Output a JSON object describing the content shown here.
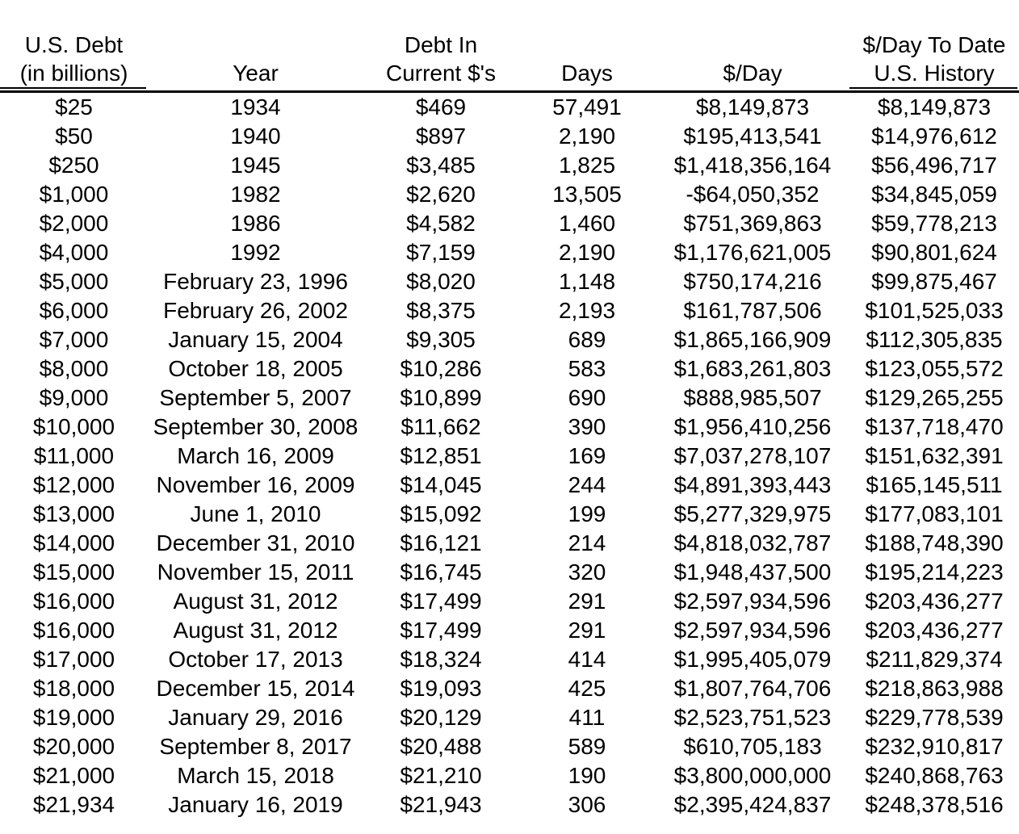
{
  "chart_data": {
    "type": "table",
    "title": "",
    "columns": [
      {
        "id": "debt",
        "lines": [
          "U.S. Debt",
          "(in billions)"
        ],
        "underlined": true
      },
      {
        "id": "year",
        "lines": [
          "Year"
        ],
        "underlined": false
      },
      {
        "id": "current_dollars",
        "lines": [
          "Debt In",
          "Current $'s"
        ],
        "underlined": false
      },
      {
        "id": "days",
        "lines": [
          "Days"
        ],
        "underlined": false
      },
      {
        "id": "per_day",
        "lines": [
          "$/Day"
        ],
        "underlined": false
      },
      {
        "id": "per_day_to_date",
        "lines": [
          "$/Day To Date",
          "U.S. History"
        ],
        "underlined": true
      }
    ],
    "rows": [
      [
        "$25",
        "1934",
        "$469",
        "57,491",
        "$8,149,873",
        "$8,149,873"
      ],
      [
        "$50",
        "1940",
        "$897",
        "2,190",
        "$195,413,541",
        "$14,976,612"
      ],
      [
        "$250",
        "1945",
        "$3,485",
        "1,825",
        "$1,418,356,164",
        "$56,496,717"
      ],
      [
        "$1,000",
        "1982",
        "$2,620",
        "13,505",
        "-$64,050,352",
        "$34,845,059"
      ],
      [
        "$2,000",
        "1986",
        "$4,582",
        "1,460",
        "$751,369,863",
        "$59,778,213"
      ],
      [
        "$4,000",
        "1992",
        "$7,159",
        "2,190",
        "$1,176,621,005",
        "$90,801,624"
      ],
      [
        "$5,000",
        "February 23, 1996",
        "$8,020",
        "1,148",
        "$750,174,216",
        "$99,875,467"
      ],
      [
        "$6,000",
        "February 26, 2002",
        "$8,375",
        "2,193",
        "$161,787,506",
        "$101,525,033"
      ],
      [
        "$7,000",
        "January 15, 2004",
        "$9,305",
        "689",
        "$1,865,166,909",
        "$112,305,835"
      ],
      [
        "$8,000",
        "October 18, 2005",
        "$10,286",
        "583",
        "$1,683,261,803",
        "$123,055,572"
      ],
      [
        "$9,000",
        "September 5, 2007",
        "$10,899",
        "690",
        "$888,985,507",
        "$129,265,255"
      ],
      [
        "$10,000",
        "September 30, 2008",
        "$11,662",
        "390",
        "$1,956,410,256",
        "$137,718,470"
      ],
      [
        "$11,000",
        "March 16, 2009",
        "$12,851",
        "169",
        "$7,037,278,107",
        "$151,632,391"
      ],
      [
        "$12,000",
        "November 16, 2009",
        "$14,045",
        "244",
        "$4,891,393,443",
        "$165,145,511"
      ],
      [
        "$13,000",
        "June 1, 2010",
        "$15,092",
        "199",
        "$5,277,329,975",
        "$177,083,101"
      ],
      [
        "$14,000",
        "December 31, 2010",
        "$16,121",
        "214",
        "$4,818,032,787",
        "$188,748,390"
      ],
      [
        "$15,000",
        "November 15, 2011",
        "$16,745",
        "320",
        "$1,948,437,500",
        "$195,214,223"
      ],
      [
        "$16,000",
        "August 31, 2012",
        "$17,499",
        "291",
        "$2,597,934,596",
        "$203,436,277"
      ],
      [
        "$16,000",
        "August 31, 2012",
        "$17,499",
        "291",
        "$2,597,934,596",
        "$203,436,277"
      ],
      [
        "$17,000",
        "October 17, 2013",
        "$18,324",
        "414",
        "$1,995,405,079",
        "$211,829,374"
      ],
      [
        "$18,000",
        "December 15, 2014",
        "$19,093",
        "425",
        "$1,807,764,706",
        "$218,863,988"
      ],
      [
        "$19,000",
        "January 29, 2016",
        "$20,129",
        "411",
        "$2,523,751,523",
        "$229,778,539"
      ],
      [
        "$20,000",
        "September 8, 2017",
        "$20,488",
        "589",
        "$610,705,183",
        "$232,910,817"
      ],
      [
        "$21,000",
        "March 15, 2018",
        "$21,210",
        "190",
        "$3,800,000,000",
        "$240,868,763"
      ],
      [
        "$21,934",
        "January 16, 2019",
        "$21,943",
        "306",
        "$2,395,424,837",
        "$248,378,516"
      ]
    ],
    "layout": {
      "grid": false,
      "header_separator": "thick rule full width, thin rule under first and last column headers",
      "text_color": "#000000",
      "background_color": "#ffffff"
    }
  }
}
